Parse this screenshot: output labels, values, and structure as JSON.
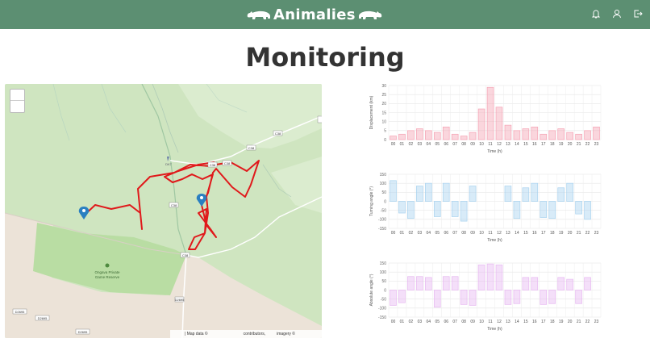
{
  "header": {
    "brand": "Animalies",
    "icons": [
      "bell-icon",
      "user-icon",
      "logout-icon"
    ]
  },
  "page": {
    "title": "Monitoring"
  },
  "map": {
    "labels": {
      "reserve": [
        "Ongava Private",
        "Game Reserve"
      ],
      "roads": [
        "C38",
        "C38",
        "C38",
        "C38",
        "C38",
        "C38",
        "D2695",
        "D2695",
        "D2695"
      ],
      "dk": "DK7"
    },
    "attribution": [
      "| Map data ©",
      "contributors,",
      "imagery ©"
    ],
    "colors": {
      "track": "#e0191b",
      "marker": "#2a7fc1"
    }
  },
  "chart_data": [
    {
      "type": "bar",
      "ylabel": "Displacement (km)",
      "xlabel": "Time (h)",
      "categories": [
        "00",
        "01",
        "02",
        "03",
        "04",
        "05",
        "06",
        "07",
        "08",
        "09",
        "10",
        "11",
        "12",
        "13",
        "14",
        "15",
        "16",
        "17",
        "18",
        "19",
        "20",
        "21",
        "22",
        "23"
      ],
      "ylim": [
        0,
        30
      ],
      "yticks": [
        0,
        5,
        10,
        15,
        20,
        25,
        30
      ],
      "values": [
        2,
        3,
        5,
        6,
        5,
        4,
        7,
        3,
        2,
        4,
        17,
        29,
        18,
        8,
        5,
        6,
        7,
        3,
        5,
        6,
        4,
        3,
        5,
        7
      ],
      "color": "#f5a3b4"
    },
    {
      "type": "bar",
      "ylabel": "Turning angle (°)",
      "xlabel": "Time (h)",
      "categories": [
        "00",
        "01",
        "02",
        "03",
        "04",
        "05",
        "06",
        "07",
        "08",
        "09",
        "10",
        "11",
        "12",
        "13",
        "14",
        "15",
        "16",
        "17",
        "18",
        "19",
        "20",
        "21",
        "22",
        "23"
      ],
      "ylim": [
        -150,
        150
      ],
      "yticks": [
        150,
        100,
        50,
        0,
        -50,
        -100,
        -150
      ],
      "values": [
        115,
        -65,
        -95,
        85,
        100,
        -85,
        100,
        -85,
        -110,
        85,
        0,
        0,
        0,
        85,
        -95,
        75,
        100,
        -90,
        -95,
        75,
        100,
        -70,
        -100,
        0
      ],
      "color": "#a9d3ef"
    },
    {
      "type": "bar",
      "ylabel": "Absolute angle (°)",
      "xlabel": "Time (h)",
      "categories": [
        "00",
        "01",
        "02",
        "03",
        "04",
        "05",
        "06",
        "07",
        "08",
        "09",
        "10",
        "11",
        "12",
        "13",
        "14",
        "15",
        "16",
        "17",
        "18",
        "19",
        "20",
        "21",
        "22",
        "23"
      ],
      "ylim": [
        -150,
        150
      ],
      "yticks": [
        150,
        100,
        50,
        0,
        -50,
        -100,
        -150
      ],
      "values": [
        -85,
        -70,
        75,
        75,
        70,
        -95,
        75,
        75,
        -80,
        -85,
        140,
        145,
        140,
        -80,
        -75,
        70,
        70,
        -80,
        -75,
        70,
        60,
        -75,
        70,
        0
      ],
      "color": "#e7b9f1"
    }
  ]
}
